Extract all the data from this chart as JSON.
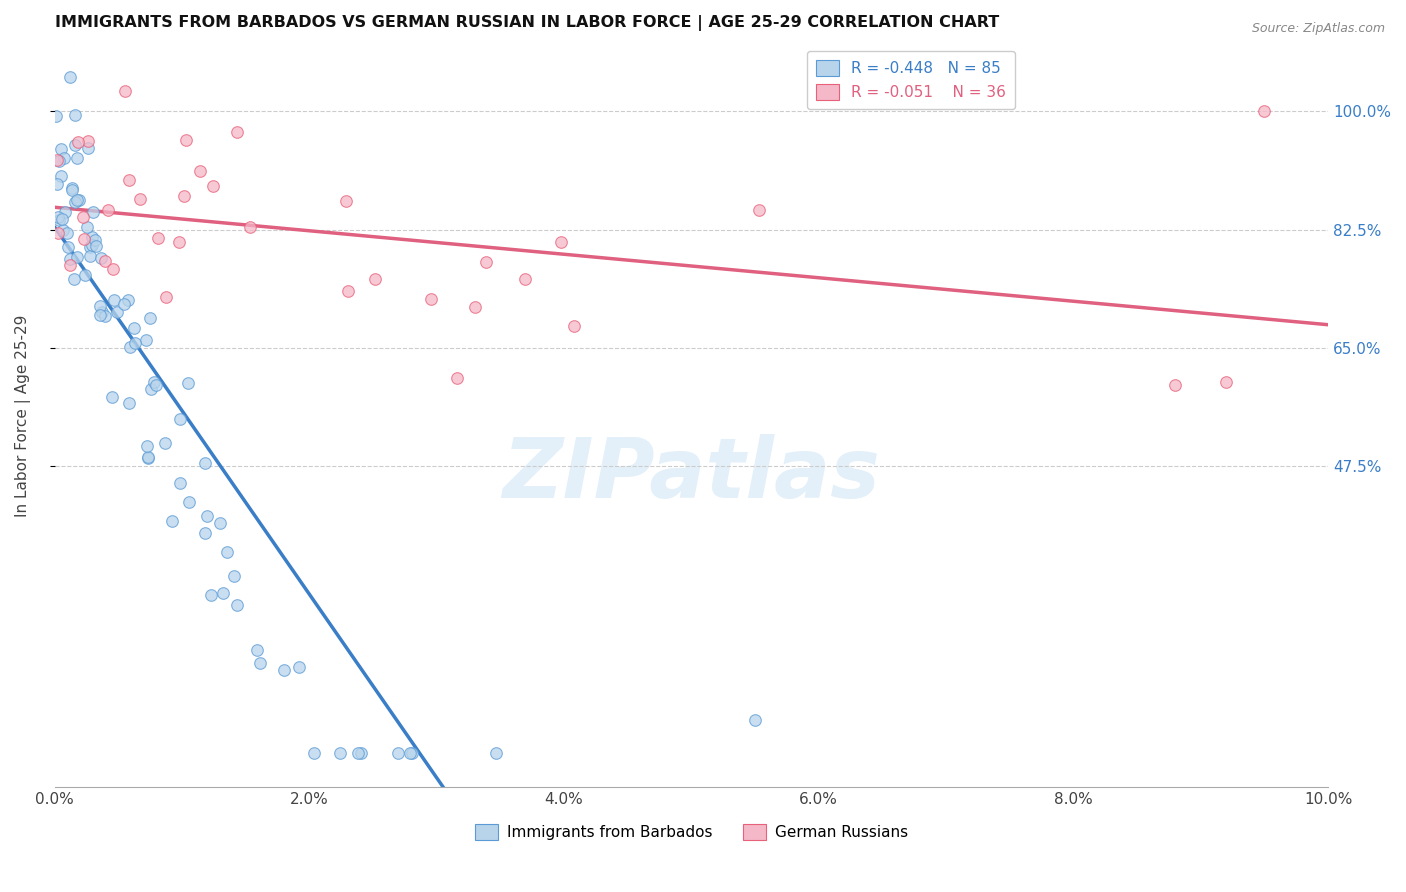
{
  "title": "IMMIGRANTS FROM BARBADOS VS GERMAN RUSSIAN IN LABOR FORCE | AGE 25-29 CORRELATION CHART",
  "source": "Source: ZipAtlas.com",
  "ylabel": "In Labor Force | Age 25-29",
  "R_barbados": -0.448,
  "N_barbados": 85,
  "R_german": -0.051,
  "N_german": 36,
  "color_barbados_fill": "#b8d4eb",
  "color_barbados_edge": "#5b9bd5",
  "color_german_fill": "#f4b8c8",
  "color_german_edge": "#e8607a",
  "color_trendline_barbados": "#3a7ec8",
  "color_trendline_german": "#e06080",
  "trendline_barbados_intercept": 0.925,
  "trendline_barbados_slope": -45.0,
  "trendline_german_intercept": 0.878,
  "trendline_german_slope": -3.5,
  "xlim": [
    0.0,
    0.1
  ],
  "ylim": [
    0.0,
    1.1
  ],
  "ytick_positions": [
    0.475,
    0.65,
    0.825,
    1.0
  ],
  "ytick_labels": [
    "47.5%",
    "65.0%",
    "82.5%",
    "100.0%"
  ],
  "xtick_positions": [
    0.0,
    0.02,
    0.04,
    0.06,
    0.08,
    0.1
  ],
  "xtick_labels": [
    "0.0%",
    "2.0%",
    "4.0%",
    "6.0%",
    "8.0%",
    "10.0%"
  ],
  "grid_color": "#cccccc",
  "watermark_text": "ZIPatlas",
  "marker_size": 70,
  "marker_alpha": 0.75
}
